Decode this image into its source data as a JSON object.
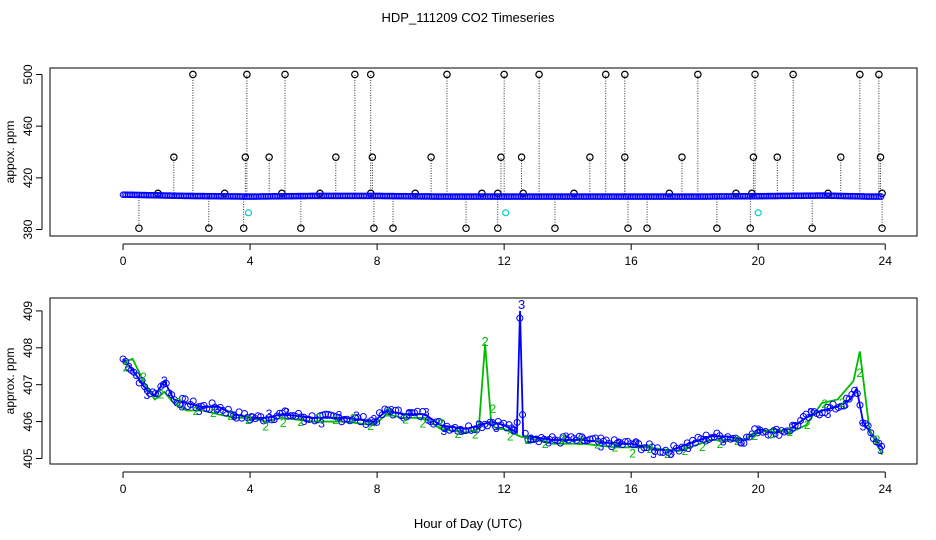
{
  "title": "HDP_111209  CO2 Timeseries",
  "xlabel": "Hour of Day (UTC)",
  "colors": {
    "axis": "#000000",
    "black": "#000000",
    "blue": "#0000ff",
    "cyan": "#00d0d0",
    "green": "#00bb00"
  },
  "chart_data": [
    {
      "type": "scatter",
      "panel": "top",
      "ylabel": "appox. ppm",
      "xlim": [
        -2.3,
        25.0
      ],
      "ylim": [
        375,
        505
      ],
      "xticks": [
        0,
        4,
        8,
        12,
        16,
        20,
        24
      ],
      "yticks": [
        380,
        420,
        460,
        500
      ],
      "baseline": {
        "name": "CO2 (blue)",
        "x": [
          0,
          2,
          4,
          6,
          8,
          10,
          12,
          14,
          16,
          18,
          20,
          22,
          23.5
        ],
        "y": [
          407,
          406,
          405.5,
          406,
          406,
          405.5,
          405.5,
          405.5,
          405.5,
          405.5,
          405.8,
          406.3,
          405.5
        ]
      },
      "spikes_high": [
        2.2,
        3.9,
        5.1,
        7.3,
        7.8,
        10.2,
        12.0,
        13.1,
        15.2,
        15.8,
        18.1,
        19.9,
        21.1,
        23.2,
        23.8
      ],
      "spikes_high_value": 500,
      "spikes_mid": [
        1.6,
        3.85,
        4.6,
        6.7,
        7.85,
        9.7,
        11.9,
        12.55,
        14.7,
        15.8,
        17.6,
        19.85,
        20.6,
        22.6,
        23.85
      ],
      "spikes_mid_value": 436,
      "spikes_low": [
        0.5,
        2.7,
        3.8,
        5.6,
        7.9,
        8.5,
        10.8,
        11.8,
        13.6,
        15.9,
        16.5,
        18.7,
        19.75,
        21.7,
        23.9
      ],
      "spikes_low_value": 381,
      "near_base": [
        1.1,
        3.2,
        5.0,
        6.2,
        7.8,
        9.2,
        11.3,
        11.8,
        12.6,
        14.2,
        17.2,
        19.3,
        19.8,
        22.2,
        23.9
      ],
      "near_base_value": 408,
      "cyan_points": {
        "x": [
          3.95,
          12.05,
          20.0
        ],
        "y": [
          393,
          393,
          393
        ]
      }
    },
    {
      "type": "line",
      "panel": "bottom",
      "ylabel": "approx. ppm",
      "xlim": [
        -2.3,
        25.0
      ],
      "ylim": [
        404.85,
        409.35
      ],
      "xticks": [
        0,
        4,
        8,
        12,
        16,
        20,
        24
      ],
      "yticks": [
        405,
        406,
        407,
        408,
        409
      ],
      "yticklabels": [
        "405",
        "406",
        "407",
        "408",
        "409"
      ],
      "marker_label_blue": "3",
      "marker_label_green": "2",
      "series": [
        {
          "name": "3",
          "color": "blue",
          "x": [
            0,
            0.3,
            0.7,
            1.0,
            1.3,
            1.6,
            2.0,
            2.5,
            3.0,
            3.5,
            4.0,
            4.5,
            5.0,
            6.0,
            7.0,
            7.9,
            8.3,
            8.8,
            9.5,
            10.0,
            10.8,
            11.2,
            11.6,
            12.0,
            12.4,
            12.5,
            12.6,
            12.8,
            13.5,
            14.5,
            15.5,
            16.0,
            16.5,
            17.2,
            17.8,
            18.5,
            19.0,
            19.6,
            20.0,
            20.5,
            21.0,
            21.5,
            22.0,
            22.5,
            22.9,
            23.1,
            23.3,
            23.6,
            23.9
          ],
          "y": [
            407.7,
            407.4,
            406.9,
            406.7,
            407.1,
            406.6,
            406.5,
            406.4,
            406.4,
            406.2,
            406.1,
            406.1,
            406.2,
            406.1,
            406.1,
            406.0,
            406.3,
            406.2,
            406.2,
            405.9,
            405.8,
            405.9,
            406.0,
            405.9,
            405.7,
            409.0,
            405.6,
            405.6,
            405.5,
            405.5,
            405.4,
            405.4,
            405.3,
            405.2,
            405.4,
            405.6,
            405.6,
            405.5,
            405.8,
            405.7,
            405.8,
            406.1,
            406.3,
            406.4,
            406.6,
            406.9,
            406.0,
            405.6,
            405.3
          ]
        },
        {
          "name": "2",
          "color": "green",
          "x": [
            0,
            0.3,
            0.7,
            1.0,
            1.3,
            1.6,
            2.0,
            2.5,
            3.0,
            3.5,
            4.0,
            4.5,
            5.0,
            6.0,
            7.0,
            7.9,
            8.3,
            8.8,
            9.5,
            10.0,
            10.8,
            11.2,
            11.4,
            11.6,
            11.8,
            12.0,
            12.5,
            13.0,
            13.5,
            14.5,
            15.5,
            16.5,
            17.5,
            18.5,
            19.5,
            20.0,
            20.5,
            21.0,
            21.5,
            22.0,
            22.5,
            23.0,
            23.2,
            23.5,
            23.9
          ],
          "y": [
            407.6,
            407.7,
            407.0,
            406.6,
            406.8,
            406.5,
            406.3,
            406.3,
            406.2,
            406.1,
            406.1,
            406.0,
            406.1,
            406.0,
            406.0,
            405.9,
            406.2,
            406.1,
            406.1,
            405.8,
            405.7,
            405.8,
            408.1,
            405.9,
            405.8,
            405.8,
            405.6,
            405.5,
            405.4,
            405.4,
            405.3,
            405.3,
            405.2,
            405.5,
            405.5,
            405.7,
            405.8,
            405.7,
            405.9,
            406.5,
            406.6,
            407.1,
            407.9,
            405.8,
            405.1
          ]
        }
      ]
    }
  ]
}
